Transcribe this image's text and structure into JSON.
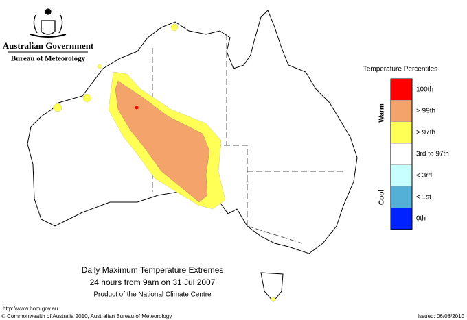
{
  "header": {
    "government": "Australian Government",
    "agency": "Bureau of Meteorology"
  },
  "legend": {
    "title": "Temperature Percentiles",
    "warm_label": "Warm",
    "cool_label": "Cool",
    "items": [
      {
        "label": "100th",
        "color": "#ff0000"
      },
      {
        "label": "> 99th",
        "color": "#f4a36b"
      },
      {
        "label": "> 97th",
        "color": "#ffff55"
      },
      {
        "label": "3rd to 97th",
        "color": "#ffffff"
      },
      {
        "label": "< 3rd",
        "color": "#c8ffff"
      },
      {
        "label": "< 1st",
        "color": "#55b0d8"
      },
      {
        "label": "0th",
        "color": "#0022ff"
      }
    ]
  },
  "map": {
    "title": "Daily Maximum Temperature Extremes",
    "subtitle": "24 hours from 9am on 31 Jul 2007",
    "credit": "Product of the National Climate Centre"
  },
  "footer": {
    "url": "http://www.bom.gov.au",
    "copyright": "© Commonwealth of Australia 2010, Australian Bureau of Meteorology",
    "issued": "Issued: 06/08/2010"
  }
}
